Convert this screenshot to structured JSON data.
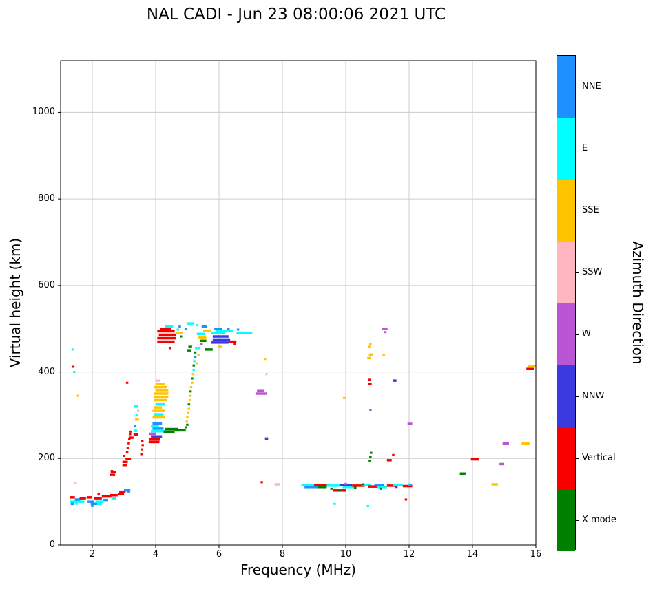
{
  "chart_data": {
    "type": "scatter",
    "title": "NAL CADI - Jun 23 08:00:06 2021 UTC",
    "xlabel": "Frequency (MHz)",
    "ylabel": "Virtual height (km)",
    "colorbar_label": "Azimuth Direction",
    "xlim": [
      1,
      16
    ],
    "ylim": [
      0,
      1120
    ],
    "x_ticks": [
      2,
      4,
      6,
      8,
      10,
      12,
      14,
      16
    ],
    "y_ticks": [
      0,
      200,
      400,
      600,
      800,
      1000
    ],
    "grid": true,
    "legend_position": "right-colorbar",
    "colors": {
      "NNE": "#1E90FF",
      "E": "#00FFFF",
      "SSE": "#FFC400",
      "SSW": "#FFB6C1",
      "W": "#BA55D3",
      "NNW": "#3A3AE0",
      "V": "#F80000",
      "X": "#008000"
    },
    "legend": [
      {
        "key": "NNE",
        "label": "NNE"
      },
      {
        "key": "E",
        "label": "E"
      },
      {
        "key": "SSE",
        "label": "SSE"
      },
      {
        "key": "SSW",
        "label": "SSW"
      },
      {
        "key": "W",
        "label": "W"
      },
      {
        "key": "NNW",
        "label": "NNW"
      },
      {
        "key": "V",
        "label": "Vertical"
      },
      {
        "key": "X",
        "label": "X-mode"
      }
    ],
    "segments": [
      [
        1.3,
        1.55,
        100,
        "E"
      ],
      [
        1.3,
        1.45,
        110,
        "V"
      ],
      [
        1.32,
        1.42,
        95,
        "NNE"
      ],
      [
        1.45,
        1.62,
        105,
        "NNE"
      ],
      [
        1.55,
        1.75,
        100,
        "E"
      ],
      [
        1.6,
        1.8,
        108,
        "V"
      ],
      [
        1.82,
        1.98,
        110,
        "V"
      ],
      [
        1.85,
        2.05,
        100,
        "NNE"
      ],
      [
        1.95,
        2.18,
        95,
        "NNE"
      ],
      [
        2.05,
        2.3,
        108,
        "V"
      ],
      [
        2.1,
        2.35,
        100,
        "E"
      ],
      [
        2.15,
        2.3,
        95,
        "E"
      ],
      [
        2.3,
        2.6,
        112,
        "V"
      ],
      [
        2.35,
        2.5,
        104,
        "NNE"
      ],
      [
        2.55,
        2.8,
        115,
        "V"
      ],
      [
        2.6,
        2.75,
        108,
        "E"
      ],
      [
        2.8,
        3.0,
        118,
        "V"
      ],
      [
        2.85,
        3.05,
        123,
        "V"
      ],
      [
        3.0,
        3.2,
        126,
        "NNE"
      ],
      [
        2.55,
        2.72,
        162,
        "V"
      ],
      [
        2.58,
        2.75,
        169,
        "V"
      ],
      [
        2.95,
        3.1,
        185,
        "V"
      ],
      [
        2.95,
        3.12,
        192,
        "V"
      ],
      [
        3.05,
        3.22,
        199,
        "V"
      ],
      [
        3.15,
        3.3,
        248,
        "V"
      ],
      [
        3.3,
        3.45,
        255,
        "V"
      ],
      [
        3.3,
        3.42,
        264,
        "E"
      ],
      [
        3.35,
        3.47,
        290,
        "SSE"
      ],
      [
        3.32,
        3.45,
        320,
        "E"
      ],
      [
        3.78,
        4.12,
        238,
        "V"
      ],
      [
        3.8,
        4.15,
        244,
        "V"
      ],
      [
        3.85,
        4.2,
        251,
        "NNW"
      ],
      [
        3.8,
        4.0,
        257,
        "W"
      ],
      [
        3.85,
        4.3,
        263,
        "E"
      ],
      [
        3.9,
        4.25,
        269,
        "NNE"
      ],
      [
        3.85,
        4.1,
        275,
        "E"
      ],
      [
        3.9,
        4.2,
        281,
        "NNE"
      ],
      [
        3.9,
        4.3,
        295,
        "SSE"
      ],
      [
        3.95,
        4.25,
        302,
        "E"
      ],
      [
        3.9,
        4.3,
        310,
        "SSE"
      ],
      [
        3.95,
        4.2,
        318,
        "SSE"
      ],
      [
        4.0,
        4.3,
        325,
        "E"
      ],
      [
        3.95,
        4.35,
        335,
        "SSE"
      ],
      [
        3.95,
        4.4,
        342,
        "SSE"
      ],
      [
        3.95,
        4.4,
        350,
        "SSE"
      ],
      [
        4.0,
        4.4,
        358,
        "SSE"
      ],
      [
        3.95,
        4.35,
        365,
        "SSE"
      ],
      [
        4.0,
        4.3,
        372,
        "SSE"
      ],
      [
        4.0,
        4.15,
        380,
        "SSW"
      ],
      [
        4.05,
        4.6,
        470,
        "V"
      ],
      [
        4.05,
        4.65,
        478,
        "V"
      ],
      [
        4.1,
        4.65,
        486,
        "V"
      ],
      [
        4.05,
        4.6,
        494,
        "V"
      ],
      [
        4.15,
        4.5,
        500,
        "V"
      ],
      [
        4.3,
        4.55,
        505,
        "E"
      ],
      [
        4.65,
        4.85,
        490,
        "SSE"
      ],
      [
        4.25,
        4.6,
        262,
        "X"
      ],
      [
        4.3,
        4.7,
        268,
        "X"
      ],
      [
        4.6,
        4.95,
        265,
        "X"
      ],
      [
        5.0,
        5.12,
        450,
        "X"
      ],
      [
        5.03,
        5.15,
        458,
        "X"
      ],
      [
        5.0,
        5.2,
        512,
        "E"
      ],
      [
        5.45,
        5.62,
        505,
        "NNE"
      ],
      [
        5.3,
        5.55,
        488,
        "E"
      ],
      [
        5.35,
        5.6,
        480,
        "SSE"
      ],
      [
        5.4,
        5.6,
        472,
        "X"
      ],
      [
        5.5,
        5.75,
        495,
        "SSE"
      ],
      [
        5.55,
        5.8,
        452,
        "X"
      ],
      [
        5.95,
        6.1,
        458,
        "SSE"
      ],
      [
        5.75,
        6.3,
        468,
        "NNW"
      ],
      [
        5.8,
        6.35,
        475,
        "NNW"
      ],
      [
        5.8,
        6.3,
        482,
        "NNW"
      ],
      [
        5.75,
        6.2,
        490,
        "E"
      ],
      [
        5.9,
        6.45,
        495,
        "E"
      ],
      [
        5.85,
        6.1,
        500,
        "NNE"
      ],
      [
        6.3,
        6.55,
        470,
        "V"
      ],
      [
        6.55,
        7.05,
        490,
        "E"
      ],
      [
        7.15,
        7.5,
        350,
        "W"
      ],
      [
        7.2,
        7.42,
        356,
        "W"
      ],
      [
        7.75,
        7.92,
        140,
        "SSW"
      ],
      [
        7.45,
        7.55,
        246,
        "NNW"
      ],
      [
        8.6,
        9.0,
        138,
        "E"
      ],
      [
        8.7,
        9.1,
        134,
        "NNE"
      ],
      [
        9.0,
        9.5,
        138,
        "V"
      ],
      [
        9.1,
        9.4,
        134,
        "X"
      ],
      [
        9.4,
        9.8,
        137,
        "E"
      ],
      [
        9.6,
        10.0,
        126,
        "V"
      ],
      [
        9.8,
        10.2,
        138,
        "NNW"
      ],
      [
        9.9,
        10.3,
        134,
        "E"
      ],
      [
        10.2,
        10.6,
        137,
        "V"
      ],
      [
        10.5,
        10.8,
        139,
        "E"
      ],
      [
        10.7,
        11.0,
        135,
        "V"
      ],
      [
        10.9,
        11.2,
        138,
        "NNE"
      ],
      [
        11.0,
        11.3,
        134,
        "E"
      ],
      [
        11.3,
        11.6,
        137,
        "V"
      ],
      [
        11.5,
        11.8,
        139,
        "E"
      ],
      [
        11.8,
        12.1,
        136,
        "V"
      ],
      [
        10.68,
        10.8,
        432,
        "SSE"
      ],
      [
        10.73,
        10.85,
        440,
        "SSE"
      ],
      [
        10.7,
        10.8,
        458,
        "SSE"
      ],
      [
        10.7,
        10.82,
        372,
        "V"
      ],
      [
        11.15,
        11.32,
        500,
        "W"
      ],
      [
        11.3,
        11.45,
        196,
        "V"
      ],
      [
        11.48,
        11.6,
        380,
        "NNW"
      ],
      [
        11.95,
        12.1,
        280,
        "W"
      ],
      [
        13.6,
        13.78,
        165,
        "X"
      ],
      [
        13.95,
        14.2,
        198,
        "V"
      ],
      [
        14.6,
        14.8,
        140,
        "SSE"
      ],
      [
        14.85,
        15.0,
        187,
        "W"
      ],
      [
        14.95,
        15.15,
        235,
        "W"
      ],
      [
        15.55,
        15.8,
        235,
        "SSE"
      ],
      [
        15.75,
        16.0,
        413,
        "SSE"
      ],
      [
        15.7,
        15.95,
        407,
        "V"
      ]
    ],
    "points": [
      [
        1.38,
        452,
        "E"
      ],
      [
        1.4,
        412,
        "V"
      ],
      [
        1.43,
        400,
        "E"
      ],
      [
        1.55,
        345,
        "SSE"
      ],
      [
        1.47,
        143,
        "SSW"
      ],
      [
        1.5,
        95,
        "E"
      ],
      [
        2.0,
        90,
        "NNE"
      ],
      [
        2.2,
        118,
        "V"
      ],
      [
        2.62,
        171,
        "V"
      ],
      [
        3.0,
        206,
        "V"
      ],
      [
        3.1,
        215,
        "V"
      ],
      [
        3.12,
        225,
        "V"
      ],
      [
        3.15,
        235,
        "V"
      ],
      [
        3.17,
        245,
        "V"
      ],
      [
        3.19,
        256,
        "V"
      ],
      [
        3.21,
        262,
        "V"
      ],
      [
        3.1,
        375,
        "V"
      ],
      [
        3.15,
        122,
        "NNE"
      ],
      [
        3.35,
        275,
        "NNE"
      ],
      [
        3.4,
        300,
        "E"
      ],
      [
        3.45,
        310,
        "SSW"
      ],
      [
        3.55,
        210,
        "V"
      ],
      [
        3.57,
        221,
        "V"
      ],
      [
        3.59,
        231,
        "V"
      ],
      [
        3.58,
        241,
        "V"
      ],
      [
        4.45,
        455,
        "V"
      ],
      [
        4.7,
        498,
        "E"
      ],
      [
        4.76,
        505,
        "NNE"
      ],
      [
        4.8,
        482,
        "X"
      ],
      [
        4.95,
        272,
        "X"
      ],
      [
        5.0,
        278,
        "X"
      ],
      [
        4.98,
        285,
        "SSE"
      ],
      [
        5.0,
        295,
        "SSE"
      ],
      [
        5.02,
        305,
        "SSE"
      ],
      [
        5.05,
        315,
        "SSE"
      ],
      [
        5.05,
        325,
        "X"
      ],
      [
        5.08,
        335,
        "SSE"
      ],
      [
        5.1,
        345,
        "SSE"
      ],
      [
        5.1,
        355,
        "X"
      ],
      [
        5.12,
        365,
        "SSE"
      ],
      [
        5.15,
        375,
        "SSE"
      ],
      [
        5.15,
        385,
        "X"
      ],
      [
        5.18,
        395,
        "SSE"
      ],
      [
        5.2,
        405,
        "E"
      ],
      [
        5.2,
        415,
        "X"
      ],
      [
        5.22,
        425,
        "E"
      ],
      [
        5.25,
        435,
        "NNE"
      ],
      [
        5.25,
        445,
        "X"
      ],
      [
        5.28,
        455,
        "E"
      ],
      [
        5.3,
        420,
        "SSE"
      ],
      [
        5.35,
        440,
        "SSE"
      ],
      [
        5.36,
        455,
        "E"
      ],
      [
        5.45,
        465,
        "W"
      ],
      [
        5.3,
        508,
        "E"
      ],
      [
        4.95,
        500,
        "NNE"
      ],
      [
        6.3,
        500,
        "NNE"
      ],
      [
        6.5,
        465,
        "V"
      ],
      [
        6.6,
        498,
        "NNE"
      ],
      [
        7.45,
        430,
        "SSE"
      ],
      [
        7.5,
        395,
        "SSW"
      ],
      [
        7.35,
        145,
        "V"
      ],
      [
        9.55,
        130,
        "X"
      ],
      [
        9.65,
        95,
        "E"
      ],
      [
        9.8,
        126,
        "X"
      ],
      [
        9.95,
        340,
        "SSE"
      ],
      [
        10.0,
        141,
        "W"
      ],
      [
        10.3,
        132,
        "X"
      ],
      [
        10.55,
        140,
        "X"
      ],
      [
        10.7,
        90,
        "E"
      ],
      [
        10.75,
        382,
        "V"
      ],
      [
        10.78,
        465,
        "SSE"
      ],
      [
        10.78,
        312,
        "W"
      ],
      [
        10.76,
        195,
        "X"
      ],
      [
        10.78,
        204,
        "X"
      ],
      [
        10.8,
        213,
        "X"
      ],
      [
        11.1,
        130,
        "X"
      ],
      [
        11.25,
        492,
        "W"
      ],
      [
        11.2,
        440,
        "SSE"
      ],
      [
        11.5,
        208,
        "V"
      ],
      [
        11.6,
        134,
        "NNW"
      ],
      [
        11.9,
        105,
        "V"
      ],
      [
        12.0,
        140,
        "E"
      ],
      [
        12.05,
        138,
        "NNE"
      ]
    ]
  }
}
